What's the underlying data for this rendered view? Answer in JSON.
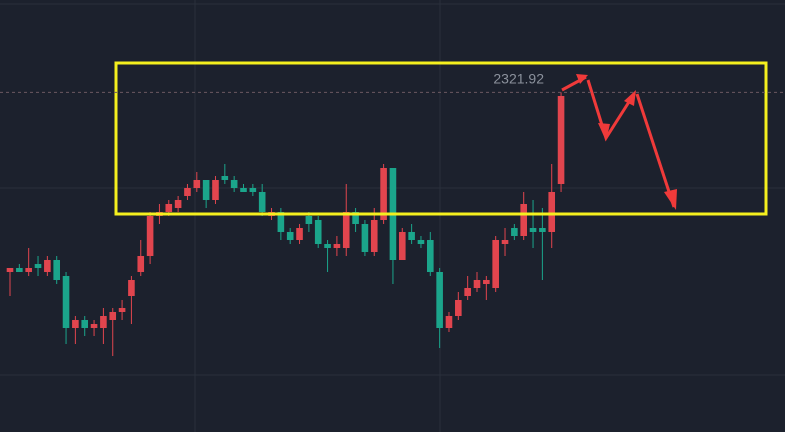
{
  "chart_data": {
    "type": "candlestick",
    "ylim": [
      2237,
      2345
    ],
    "up_color": "#e1454e",
    "down_color": "#1ba58b",
    "price_line": 2321.92,
    "open": [
      2277,
      2278,
      2277,
      2279,
      2277,
      2280,
      2276,
      2263,
      2265,
      2263,
      2263,
      2265,
      2267,
      2271,
      2277,
      2281,
      2291,
      2292,
      2293,
      2296,
      2298,
      2300,
      2295,
      2301,
      2300,
      2298,
      2298,
      2297,
      2291,
      2292,
      2287,
      2285,
      2291,
      2290,
      2284,
      2283,
      2283,
      2292,
      2289,
      2282,
      2290,
      2303,
      2280,
      2287,
      2285,
      2285,
      2277,
      2263,
      2266,
      2271,
      2273,
      2274,
      2273,
      2284,
      2288,
      2286,
      2288,
      2288,
      2287,
      2299
    ],
    "high": [
      2278,
      2279,
      2283,
      2281,
      2281,
      2281,
      2277,
      2266,
      2266,
      2265,
      2268,
      2268,
      2270,
      2276,
      2285,
      2292,
      2294,
      2295,
      2296,
      2299,
      2302,
      2300,
      2301,
      2304,
      2301,
      2299,
      2299,
      2299,
      2293,
      2293,
      2288,
      2289,
      2292,
      2291,
      2285,
      2286,
      2299,
      2293,
      2290,
      2293,
      2304,
      2303,
      2288,
      2289,
      2286,
      2287,
      2278,
      2267,
      2272,
      2276,
      2277,
      2276,
      2286,
      2288,
      2289,
      2297,
      2295,
      2293,
      2304,
      2321.92
    ],
    "low": [
      2271,
      2277,
      2276,
      2276,
      2276,
      2274,
      2259,
      2259,
      2261,
      2261,
      2259,
      2256,
      2265,
      2264,
      2276,
      2279,
      2289,
      2291,
      2292,
      2295,
      2297,
      2293,
      2294,
      2299,
      2297,
      2297,
      2296,
      2291,
      2290,
      2285,
      2284,
      2284,
      2287,
      2283,
      2277,
      2281,
      2281,
      2287,
      2281,
      2281,
      2289,
      2274,
      2280,
      2284,
      2283,
      2276,
      2258,
      2262,
      2265,
      2270,
      2272,
      2270,
      2272,
      2281,
      2285,
      2285,
      2283,
      2275,
      2283,
      2297
    ],
    "close": [
      2278,
      2277,
      2278,
      2278,
      2280,
      2275,
      2263,
      2265,
      2263,
      2264,
      2266,
      2267,
      2268,
      2275,
      2281,
      2291,
      2292,
      2294,
      2295,
      2298,
      2300,
      2295,
      2300,
      2300,
      2298,
      2297,
      2297,
      2292,
      2292,
      2287,
      2285,
      2288,
      2289,
      2284,
      2283,
      2284,
      2292,
      2289,
      2282,
      2290,
      2303,
      2280,
      2287,
      2285,
      2284,
      2277,
      2263,
      2266,
      2270,
      2273,
      2275,
      2275,
      2285,
      2285,
      2286,
      2294,
      2287,
      2287,
      2297,
      2321
    ]
  }
}
